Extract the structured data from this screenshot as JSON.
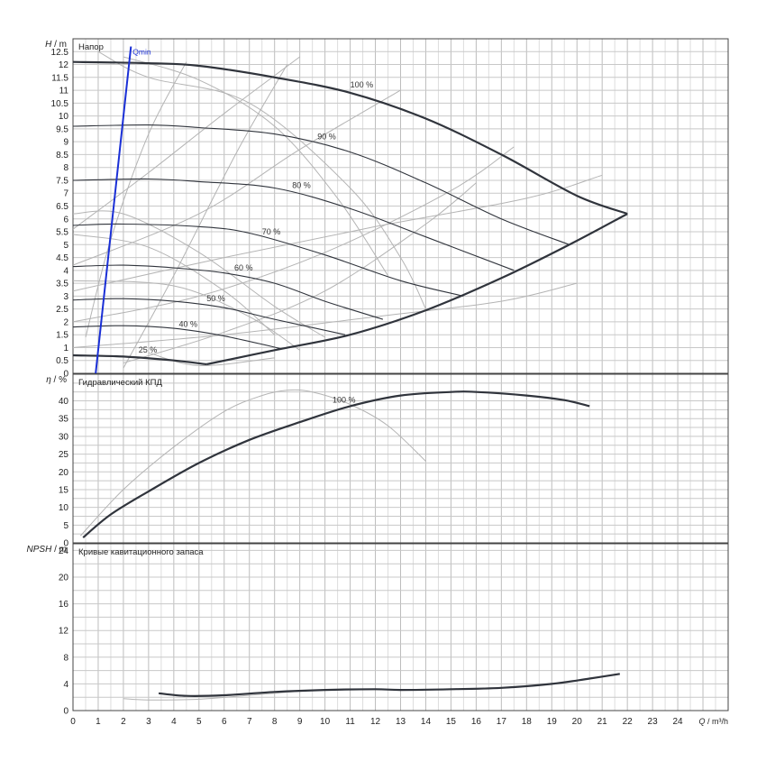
{
  "chart_data": [
    {
      "type": "line",
      "title": "Напор",
      "ylabel_var": "H",
      "ylabel_unit": "/ m",
      "ylim": [
        0,
        13
      ],
      "yticks": [
        "0",
        "0.5",
        "1",
        "1.5",
        "2",
        "2.5",
        "3",
        "3.5",
        "4",
        "4.5",
        "5",
        "5.5",
        "6",
        "6.5",
        "7",
        "7.5",
        "8",
        "8.5",
        "9",
        "9.5",
        "10",
        "10.5",
        "11",
        "11.5",
        "12",
        "12.5"
      ],
      "xlim": [
        0,
        26
      ],
      "qmin_label": "Qmin",
      "qmin_line": [
        [
          0.9,
          0
        ],
        [
          2.3,
          12.7
        ]
      ],
      "speed_curves": [
        {
          "label": "100 %",
          "label_at": [
            11.0,
            11.1
          ],
          "points": [
            [
              0,
              12.1
            ],
            [
              3,
              12.05
            ],
            [
              5,
              11.95
            ],
            [
              8,
              11.5
            ],
            [
              11,
              10.9
            ],
            [
              14,
              9.9
            ],
            [
              17,
              8.5
            ],
            [
              20,
              6.9
            ],
            [
              22,
              6.2
            ]
          ]
        },
        {
          "label": "90 %",
          "label_at": [
            9.7,
            9.1
          ],
          "points": [
            [
              0,
              9.6
            ],
            [
              3,
              9.65
            ],
            [
              5,
              9.55
            ],
            [
              8,
              9.3
            ],
            [
              11,
              8.6
            ],
            [
              14,
              7.4
            ],
            [
              17,
              6.0
            ],
            [
              19.7,
              5.0
            ]
          ]
        },
        {
          "label": "80 %",
          "label_at": [
            8.7,
            7.2
          ],
          "points": [
            [
              0,
              7.5
            ],
            [
              3,
              7.55
            ],
            [
              5,
              7.45
            ],
            [
              8,
              7.2
            ],
            [
              11,
              6.4
            ],
            [
              14,
              5.3
            ],
            [
              17.5,
              4.0
            ]
          ]
        },
        {
          "label": "70 %",
          "label_at": [
            7.5,
            5.4
          ],
          "points": [
            [
              0,
              5.75
            ],
            [
              2,
              5.8
            ],
            [
              5,
              5.7
            ],
            [
              7,
              5.45
            ],
            [
              10,
              4.6
            ],
            [
              13,
              3.6
            ],
            [
              15.5,
              3.0
            ]
          ]
        },
        {
          "label": "60 %",
          "label_at": [
            6.4,
            4.0
          ],
          "points": [
            [
              0,
              4.15
            ],
            [
              2,
              4.2
            ],
            [
              4,
              4.1
            ],
            [
              6,
              3.9
            ],
            [
              8,
              3.5
            ],
            [
              10,
              2.8
            ],
            [
              12.3,
              2.1
            ]
          ]
        },
        {
          "label": "50 %",
          "label_at": [
            5.3,
            2.8
          ],
          "points": [
            [
              0,
              2.85
            ],
            [
              2,
              2.9
            ],
            [
              4,
              2.8
            ],
            [
              6,
              2.55
            ],
            [
              8,
              2.1
            ],
            [
              10.8,
              1.5
            ]
          ]
        },
        {
          "label": "40 %",
          "label_at": [
            4.2,
            1.8
          ],
          "points": [
            [
              0,
              1.8
            ],
            [
              2,
              1.85
            ],
            [
              4,
              1.75
            ],
            [
              6,
              1.45
            ],
            [
              8.3,
              0.95
            ]
          ]
        },
        {
          "label": "25 %",
          "label_at": [
            2.6,
            0.8
          ],
          "points": [
            [
              0,
              0.7
            ],
            [
              2,
              0.65
            ],
            [
              4,
              0.5
            ],
            [
              5.3,
              0.35
            ]
          ]
        }
      ],
      "min_curve": [
        [
          5.3,
          0.35
        ],
        [
          8,
          0.9
        ],
        [
          11,
          1.5
        ],
        [
          14,
          2.45
        ],
        [
          17,
          3.7
        ],
        [
          19.7,
          5.0
        ],
        [
          22,
          6.2
        ]
      ],
      "eff_lines": [
        [
          [
            0,
            3.6
          ],
          [
            4,
            3.4
          ],
          [
            7,
            2.2
          ],
          [
            9,
            0.9
          ]
        ],
        [
          [
            0,
            5.4
          ],
          [
            3,
            4.9
          ],
          [
            6,
            3.2
          ],
          [
            8,
            1.5
          ]
        ],
        [
          [
            0,
            6.2
          ],
          [
            2,
            6.2
          ],
          [
            5,
            4.7
          ],
          [
            8,
            2.6
          ],
          [
            10,
            1.4
          ]
        ],
        [
          [
            1,
            12.5
          ],
          [
            3,
            11.5
          ],
          [
            7,
            10.5
          ],
          [
            11,
            7.2
          ],
          [
            13,
            4.5
          ],
          [
            14,
            2.5
          ]
        ],
        [
          [
            2,
            12.3
          ],
          [
            5,
            11.4
          ],
          [
            8,
            9.6
          ],
          [
            10.5,
            6.8
          ],
          [
            12.5,
            3.8
          ]
        ],
        [
          [
            0,
            3.2
          ],
          [
            6,
            4.5
          ],
          [
            12,
            5.7
          ],
          [
            18,
            6.8
          ],
          [
            21,
            7.7
          ]
        ],
        [
          [
            0,
            1.0
          ],
          [
            6,
            1.5
          ],
          [
            12,
            2.2
          ],
          [
            17,
            2.8
          ],
          [
            20,
            3.5
          ]
        ],
        [
          [
            0,
            2.0
          ],
          [
            5,
            3.0
          ],
          [
            10,
            4.7
          ],
          [
            15,
            7.1
          ],
          [
            17.5,
            8.8
          ]
        ],
        [
          [
            2,
            0.4
          ],
          [
            6,
            1.6
          ],
          [
            10,
            3.2
          ],
          [
            14,
            5.8
          ],
          [
            16,
            7.4
          ]
        ],
        [
          [
            0,
            4.2
          ],
          [
            5,
            6.2
          ],
          [
            9,
            8.7
          ],
          [
            13,
            11.0
          ]
        ],
        [
          [
            0,
            5.6
          ],
          [
            3,
            7.8
          ],
          [
            6,
            10.1
          ],
          [
            9,
            12.3
          ]
        ],
        [
          [
            0.5,
            1.4
          ],
          [
            1.5,
            5.2
          ],
          [
            3,
            9.3
          ],
          [
            4.5,
            12.1
          ]
        ],
        [
          [
            2,
            0.2
          ],
          [
            4,
            3.8
          ],
          [
            6.5,
            8.6
          ],
          [
            8.5,
            12.0
          ]
        ],
        [
          [
            3,
            0.8
          ],
          [
            5,
            0.3
          ],
          [
            8,
            0.6
          ]
        ]
      ]
    },
    {
      "type": "line",
      "title": "Гидравлический КПД",
      "ylabel_var": "η",
      "ylabel_unit": "/ %",
      "ylim": [
        0,
        47.5
      ],
      "yticks": [
        "0",
        "5",
        "10",
        "15",
        "20",
        "25",
        "30",
        "35",
        "40"
      ],
      "curve_label": "100 %",
      "curve_label_at": [
        10.3,
        39.5
      ],
      "series": [
        {
          "name": "",
          "points": [
            [
              0.4,
              1.5
            ],
            [
              1.5,
              8
            ],
            [
              3,
              14.5
            ],
            [
              5,
              22.5
            ],
            [
              7,
              29
            ],
            [
              9,
              34
            ],
            [
              11,
              38.5
            ],
            [
              13,
              41.5
            ],
            [
              15,
              42.5
            ],
            [
              16,
              42.5
            ],
            [
              18,
              41.5
            ],
            [
              19.5,
              40.2
            ],
            [
              20.5,
              38.5
            ]
          ]
        }
      ],
      "ref_curve": [
        [
          0.3,
          2
        ],
        [
          2,
          15
        ],
        [
          4,
          27
        ],
        [
          6,
          37
        ],
        [
          7.5,
          41.5
        ],
        [
          8.5,
          43
        ],
        [
          9.5,
          42.5
        ],
        [
          11,
          39
        ],
        [
          12.5,
          33
        ],
        [
          14,
          23
        ]
      ]
    },
    {
      "type": "line",
      "title": "Кривые кавитационного запаса",
      "ylabel_var": "NPSH",
      "ylabel_unit": "/ m",
      "ylim": [
        0,
        25
      ],
      "yticks": [
        "0",
        "4",
        "8",
        "12",
        "16",
        "20",
        "24"
      ],
      "xlabel_var": "Q",
      "xlabel_unit": "/ m³/h",
      "xticks": [
        "0",
        "1",
        "2",
        "3",
        "4",
        "5",
        "6",
        "7",
        "8",
        "9",
        "10",
        "11",
        "12",
        "13",
        "14",
        "15",
        "16",
        "17",
        "18",
        "19",
        "20",
        "21",
        "22",
        "23",
        "24"
      ],
      "series": [
        {
          "name": "",
          "points": [
            [
              3.4,
              2.6
            ],
            [
              4.5,
              2.2
            ],
            [
              6,
              2.3
            ],
            [
              8,
              2.8
            ],
            [
              10,
              3.1
            ],
            [
              12,
              3.2
            ],
            [
              13,
              3.1
            ],
            [
              15,
              3.2
            ],
            [
              17,
              3.4
            ],
            [
              19,
              4.0
            ],
            [
              20.5,
              4.8
            ],
            [
              21.7,
              5.5
            ]
          ]
        }
      ],
      "ref_curve": [
        [
          2,
          1.8
        ],
        [
          3,
          1.6
        ],
        [
          5,
          1.7
        ],
        [
          7,
          2.3
        ],
        [
          9,
          2.9
        ]
      ]
    }
  ]
}
